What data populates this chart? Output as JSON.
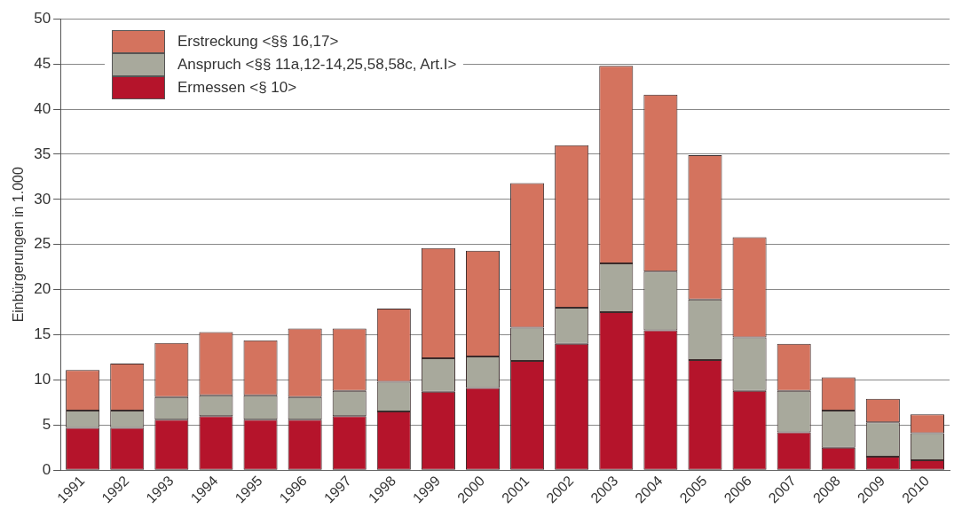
{
  "chart_data": {
    "type": "bar",
    "ylabel": "Einbürgerungen in 1.000",
    "stacked": true,
    "grid": "y",
    "legend": "top left",
    "categories": [
      "1991",
      "1992",
      "1993",
      "1994",
      "1995",
      "1996",
      "1997",
      "1998",
      "1999",
      "2000",
      "2001",
      "2002",
      "2003",
      "2004",
      "2005",
      "2006",
      "2007",
      "2008",
      "2009",
      "2010"
    ],
    "series": [
      {
        "name": "Ermessen <§ 10>",
        "color": "#b5142b",
        "values": [
          4.7,
          4.7,
          5.6,
          6.0,
          5.6,
          5.6,
          6.0,
          6.5,
          8.7,
          9.1,
          12.1,
          14.0,
          17.5,
          15.5,
          12.2,
          8.8,
          4.2,
          2.5,
          1.5,
          1.1
        ]
      },
      {
        "name": "Anspruch <§§ 11a,12-14,25,58,58c, Art.I>",
        "color": "#a8a99c",
        "values": [
          1.9,
          1.9,
          2.5,
          2.3,
          2.7,
          2.5,
          2.8,
          3.3,
          3.7,
          3.5,
          3.7,
          4.0,
          5.4,
          6.5,
          6.7,
          5.9,
          4.6,
          4.1,
          3.8,
          3.0
        ]
      },
      {
        "name": "Erstreckung <§§ 16,17>",
        "color": "#d4735e",
        "values": [
          4.5,
          5.2,
          6.0,
          7.0,
          6.1,
          7.6,
          6.9,
          8.1,
          12.2,
          11.7,
          16.0,
          18.0,
          21.9,
          19.6,
          16.0,
          11.1,
          5.2,
          3.7,
          2.6,
          2.1
        ]
      }
    ],
    "ylim": [
      0,
      50
    ],
    "yticks": [
      0,
      5,
      10,
      15,
      20,
      25,
      30,
      35,
      40,
      45,
      50
    ]
  }
}
